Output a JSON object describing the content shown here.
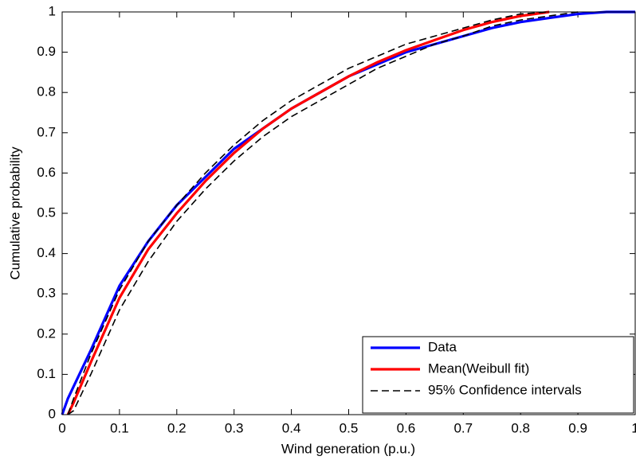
{
  "chart_data": {
    "type": "line",
    "xlabel": "Wind generation (p.u.)",
    "ylabel": "Cumulative probability",
    "x": [
      0,
      0.01,
      0.02,
      0.05,
      0.1,
      0.15,
      0.2,
      0.25,
      0.3,
      0.35,
      0.4,
      0.45,
      0.5,
      0.55,
      0.6,
      0.65,
      0.7,
      0.75,
      0.8,
      0.85,
      0.9,
      0.95,
      1
    ],
    "series": [
      {
        "name": "Data",
        "color": "#0000ff",
        "dash": false,
        "values": [
          0,
          0.04,
          0.07,
          0.16,
          0.32,
          0.43,
          0.52,
          0.59,
          0.66,
          0.71,
          0.76,
          0.8,
          0.84,
          0.87,
          0.9,
          0.92,
          0.94,
          0.96,
          0.975,
          0.985,
          0.995,
          1,
          1
        ]
      },
      {
        "name": "Mean(Weibull fit)",
        "color": "#ff0000",
        "dash": false,
        "values": [
          null,
          0,
          0.03,
          0.13,
          0.29,
          0.41,
          0.5,
          0.58,
          0.65,
          0.71,
          0.76,
          0.8,
          0.84,
          0.875,
          0.905,
          0.93,
          0.955,
          0.975,
          0.99,
          1,
          null,
          null,
          null
        ]
      },
      {
        "name": "95% Confidence intervals",
        "color": "#000000",
        "dash": true,
        "values": [
          null,
          0,
          0.04,
          0.15,
          0.31,
          0.43,
          0.52,
          0.6,
          0.67,
          0.73,
          0.78,
          0.82,
          0.86,
          0.89,
          0.92,
          0.94,
          0.96,
          0.98,
          0.995,
          1,
          null,
          null,
          null
        ]
      },
      {
        "color": "#000000",
        "dash": true,
        "values": [
          null,
          0,
          0.01,
          0.1,
          0.26,
          0.38,
          0.48,
          0.56,
          0.63,
          0.69,
          0.74,
          0.78,
          0.82,
          0.86,
          0.89,
          0.92,
          0.94,
          0.965,
          0.98,
          0.99,
          1,
          null,
          null
        ]
      }
    ],
    "xlim": [
      0,
      1
    ],
    "xticks": [
      0,
      0.1,
      0.2,
      0.3,
      0.4,
      0.5,
      0.6,
      0.7,
      0.8,
      0.9,
      1
    ],
    "ylim": [
      0,
      1
    ],
    "yticks": [
      0,
      0.1,
      0.2,
      0.3,
      0.4,
      0.5,
      0.6,
      0.7,
      0.8,
      0.9,
      1
    ],
    "grid": false,
    "legend": "lower right"
  }
}
